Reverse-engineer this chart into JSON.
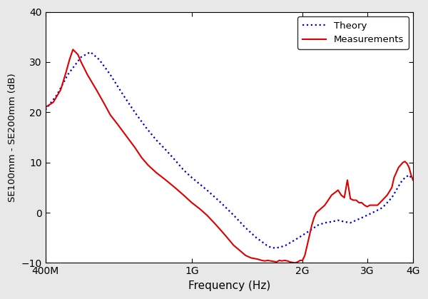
{
  "title": "",
  "xlabel": "Frequency (Hz)",
  "ylabel": "SE100mm - SE200mm (dB)",
  "xlim_log": [
    400000000.0,
    4000000000.0
  ],
  "ylim": [
    -10,
    40
  ],
  "yticks": [
    -10,
    0,
    10,
    20,
    30,
    40
  ],
  "xtick_labels": [
    "400M",
    "1G",
    "2G",
    "3G",
    "4G"
  ],
  "xtick_vals": [
    400000000.0,
    1000000000.0,
    2000000000.0,
    3000000000.0,
    4000000000.0
  ],
  "theory_color": "#0000cc",
  "meas_color": "#dd0000",
  "legend_labels": [
    "Theory",
    "Measurements"
  ],
  "fig_bg": "#e8e8e8",
  "ax_bg": "#ffffff",
  "theory_x": [
    400000000.0,
    430000000.0,
    460000000.0,
    500000000.0,
    530000000.0,
    560000000.0,
    600000000.0,
    650000000.0,
    700000000.0,
    750000000.0,
    800000000.0,
    850000000.0,
    900000000.0,
    950000000.0,
    1000000000.0,
    1100000000.0,
    1200000000.0,
    1300000000.0,
    1400000000.0,
    1500000000.0,
    1600000000.0,
    1650000000.0,
    1700000000.0,
    1750000000.0,
    1800000000.0,
    1900000000.0,
    2000000000.0,
    2100000000.0,
    2200000000.0,
    2300000000.0,
    2400000000.0,
    2500000000.0,
    2600000000.0,
    2700000000.0,
    2800000000.0,
    2900000000.0,
    3000000000.0,
    3100000000.0,
    3200000000.0,
    3300000000.0,
    3400000000.0,
    3500000000.0,
    3600000000.0,
    3700000000.0,
    3800000000.0,
    3900000000.0,
    4000000000.0
  ],
  "theory_y": [
    20.5,
    23.5,
    27.5,
    31.0,
    32.0,
    30.5,
    27.5,
    23.5,
    20.0,
    17.0,
    14.5,
    12.5,
    10.5,
    8.5,
    7.0,
    4.5,
    2.0,
    -0.5,
    -3.0,
    -5.0,
    -6.5,
    -7.0,
    -7.0,
    -6.8,
    -6.5,
    -5.5,
    -4.5,
    -3.5,
    -2.5,
    -2.0,
    -1.8,
    -1.5,
    -1.8,
    -2.0,
    -1.5,
    -1.0,
    -0.5,
    0.0,
    0.5,
    1.0,
    2.0,
    3.0,
    4.5,
    6.0,
    7.0,
    7.5,
    6.5
  ],
  "meas_x": [
    400000000.0,
    420000000.0,
    440000000.0,
    455000000.0,
    465000000.0,
    475000000.0,
    490000000.0,
    500000000.0,
    520000000.0,
    550000000.0,
    580000000.0,
    600000000.0,
    630000000.0,
    660000000.0,
    700000000.0,
    730000000.0,
    760000000.0,
    800000000.0,
    850000000.0,
    900000000.0,
    950000000.0,
    1000000000.0,
    1050000000.0,
    1100000000.0,
    1150000000.0,
    1200000000.0,
    1250000000.0,
    1300000000.0,
    1350000000.0,
    1400000000.0,
    1450000000.0,
    1500000000.0,
    1520000000.0,
    1550000000.0,
    1580000000.0,
    1610000000.0,
    1640000000.0,
    1670000000.0,
    1700000000.0,
    1730000000.0,
    1760000000.0,
    1790000000.0,
    1820000000.0,
    1850000000.0,
    1880000000.0,
    1910000000.0,
    1940000000.0,
    1970000000.0,
    2000000000.0,
    2030000000.0,
    2060000000.0,
    2090000000.0,
    2120000000.0,
    2150000000.0,
    2180000000.0,
    2220000000.0,
    2260000000.0,
    2300000000.0,
    2350000000.0,
    2400000000.0,
    2450000000.0,
    2500000000.0,
    2550000000.0,
    2600000000.0,
    2650000000.0,
    2700000000.0,
    2750000000.0,
    2800000000.0,
    2850000000.0,
    2900000000.0,
    2950000000.0,
    3000000000.0,
    3050000000.0,
    3100000000.0,
    3150000000.0,
    3200000000.0,
    3300000000.0,
    3400000000.0,
    3500000000.0,
    3550000000.0,
    3600000000.0,
    3650000000.0,
    3700000000.0,
    3750000000.0,
    3800000000.0,
    3850000000.0,
    3900000000.0,
    3950000000.0,
    4000000000.0
  ],
  "meas_y": [
    21.0,
    22.0,
    24.5,
    28.0,
    30.5,
    32.5,
    31.5,
    30.0,
    27.5,
    24.5,
    21.5,
    19.5,
    17.5,
    15.5,
    13.0,
    11.0,
    9.5,
    8.0,
    6.5,
    5.0,
    3.5,
    2.0,
    0.8,
    -0.5,
    -2.0,
    -3.5,
    -5.0,
    -6.5,
    -7.5,
    -8.5,
    -9.0,
    -9.2,
    -9.3,
    -9.5,
    -9.6,
    -9.5,
    -9.6,
    -9.7,
    -9.8,
    -9.5,
    -9.6,
    -9.5,
    -9.6,
    -9.8,
    -9.9,
    -10.0,
    -9.8,
    -9.5,
    -9.5,
    -8.5,
    -6.5,
    -4.5,
    -2.5,
    -1.0,
    0.0,
    0.5,
    1.0,
    1.5,
    2.5,
    3.5,
    4.0,
    4.5,
    3.5,
    3.0,
    6.5,
    2.8,
    2.5,
    2.5,
    2.0,
    2.0,
    1.5,
    1.2,
    1.5,
    1.5,
    1.5,
    1.5,
    2.5,
    3.5,
    5.0,
    7.0,
    8.0,
    9.0,
    9.5,
    10.0,
    10.2,
    9.8,
    9.0,
    7.5,
    6.5
  ]
}
